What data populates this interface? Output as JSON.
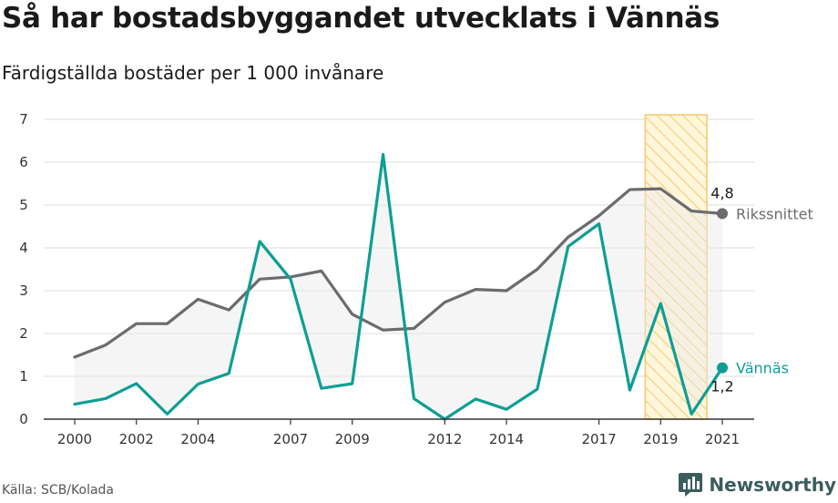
{
  "chart_data": {
    "type": "line",
    "title": "Så har bostadsbyggandet utvecklats i Vännäs",
    "subtitle": "Färdigställda bostäder per 1 000 invånare",
    "x": [
      2000,
      2001,
      2002,
      2003,
      2004,
      2005,
      2006,
      2007,
      2008,
      2009,
      2010,
      2011,
      2012,
      2013,
      2014,
      2015,
      2016,
      2017,
      2018,
      2019,
      2020,
      2021
    ],
    "xticks": [
      "2000",
      "2002",
      "2004",
      "2007",
      "2009",
      "2012",
      "2014",
      "2017",
      "2019",
      "2021"
    ],
    "yticks": [
      "0",
      "1",
      "2",
      "3",
      "4",
      "5",
      "6",
      "7"
    ],
    "ylim": [
      0,
      7
    ],
    "grid": true,
    "highlight_range": [
      2018.5,
      2020.5
    ],
    "series": [
      {
        "name": "Rikssnittet",
        "color": "#6b6b70",
        "values": [
          1.45,
          1.73,
          2.23,
          2.23,
          2.8,
          2.55,
          3.27,
          3.32,
          3.46,
          2.45,
          2.08,
          2.12,
          2.73,
          3.03,
          3.0,
          3.5,
          4.25,
          4.75,
          5.36,
          5.38,
          4.86,
          4.8
        ],
        "end_label": "4,8"
      },
      {
        "name": "Vännäs",
        "color": "#0e9e94",
        "values": [
          0.35,
          0.48,
          0.83,
          0.12,
          0.82,
          1.07,
          4.15,
          3.27,
          0.72,
          0.83,
          6.18,
          0.48,
          0.0,
          0.47,
          0.23,
          0.7,
          4.03,
          4.56,
          0.68,
          2.7,
          0.12,
          1.2
        ],
        "end_label": "1,2"
      }
    ]
  },
  "source": "Källa: SCB/Kolada",
  "brand": "Newsworthy"
}
